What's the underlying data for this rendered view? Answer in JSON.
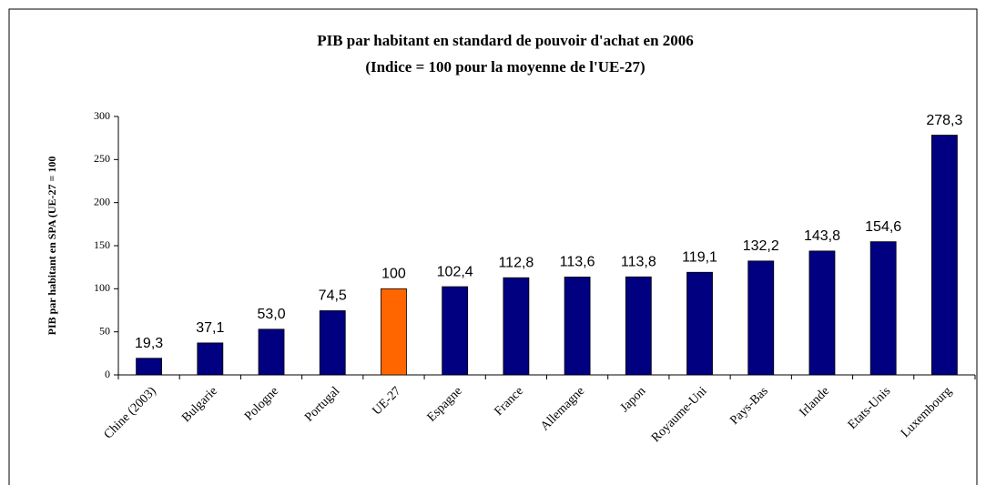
{
  "chart_data": {
    "type": "bar",
    "title": "PIB par habitant en standard de pouvoir d'achat en 2006",
    "subtitle": "(Indice = 100 pour la moyenne de l'UE-27)",
    "y_label": "PIB par habitant en SPA (UE-27 = 100",
    "categories": [
      "Chine (2003)",
      "Bulgarie",
      "Pologne",
      "Portugal",
      "UE-27",
      "Espagne",
      "France",
      "Allemagne",
      "Japon",
      "Royaume-Uni",
      "Pays-Bas",
      "Irlande",
      "Etats-Unis",
      "Luxembourg"
    ],
    "values": [
      19.3,
      37.1,
      53.0,
      74.5,
      100,
      102.4,
      112.8,
      113.6,
      113.8,
      119.1,
      132.2,
      143.8,
      154.6,
      278.3
    ],
    "value_labels": [
      "19,3",
      "37,1",
      "53,0",
      "74,5",
      "100",
      "102,4",
      "112,8",
      "113,6",
      "113,8",
      "119,1",
      "132,2",
      "143,8",
      "154,6",
      "278,3"
    ],
    "colors": [
      "#000080",
      "#000080",
      "#000080",
      "#000080",
      "#ff6600",
      "#000080",
      "#000080",
      "#000080",
      "#000080",
      "#000080",
      "#000080",
      "#000080",
      "#000080",
      "#000080"
    ],
    "ylim": [
      0,
      300
    ],
    "yticks": [
      0,
      50,
      100,
      150,
      200,
      250,
      300
    ],
    "grid": false
  }
}
